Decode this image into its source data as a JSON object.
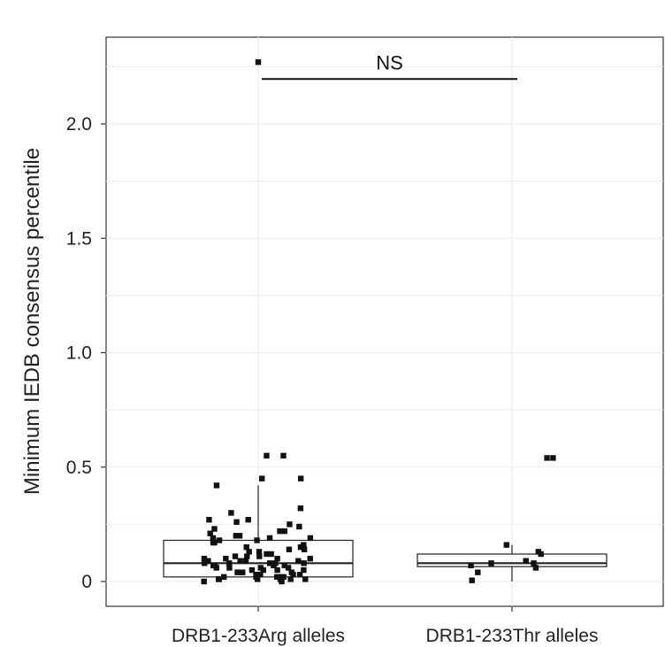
{
  "chart_data": {
    "type": "box",
    "title": "",
    "xlabel": "",
    "ylabel": "Minimum IEDB consensus percentile",
    "ylim": [
      -0.1,
      2.4
    ],
    "yticks": [
      0,
      0.5,
      1.0,
      1.5,
      2.0
    ],
    "ytick_labels": [
      "0",
      "0.5",
      "1.0",
      "1.5",
      "2.0"
    ],
    "grid": true,
    "categories": [
      "DRB1-233Arg alleles",
      "DRB1-233Thr alleles"
    ],
    "boxes": [
      {
        "category": "DRB1-233Arg alleles",
        "min": 0.0,
        "q1": 0.02,
        "median": 0.08,
        "q3": 0.18,
        "max": 0.42
      },
      {
        "category": "DRB1-233Thr alleles",
        "min": 0.0,
        "q1": 0.065,
        "median": 0.08,
        "q3": 0.12,
        "max": 0.16
      }
    ],
    "points": [
      {
        "category": "DRB1-233Arg alleles",
        "values": [
          2.27,
          0.55,
          0.55,
          0.45,
          0.45,
          0.42,
          0.32,
          0.3,
          0.27,
          0.27,
          0.26,
          0.25,
          0.24,
          0.23,
          0.22,
          0.22,
          0.21,
          0.2,
          0.2,
          0.19,
          0.19,
          0.19,
          0.18,
          0.18,
          0.18,
          0.17,
          0.17,
          0.16,
          0.15,
          0.15,
          0.14,
          0.14,
          0.13,
          0.13,
          0.12,
          0.12,
          0.11,
          0.11,
          0.11,
          0.1,
          0.1,
          0.1,
          0.1,
          0.09,
          0.09,
          0.09,
          0.09,
          0.08,
          0.08,
          0.08,
          0.08,
          0.08,
          0.07,
          0.07,
          0.07,
          0.07,
          0.06,
          0.06,
          0.06,
          0.06,
          0.05,
          0.05,
          0.05,
          0.05,
          0.04,
          0.04,
          0.04,
          0.04,
          0.03,
          0.03,
          0.03,
          0.03,
          0.02,
          0.02,
          0.02,
          0.02,
          0.02,
          0.01,
          0.01,
          0.01,
          0.01,
          0.01,
          0.01,
          0.0,
          0.0
        ]
      },
      {
        "category": "DRB1-233Thr alleles",
        "values": [
          0.54,
          0.54,
          0.16,
          0.13,
          0.12,
          0.09,
          0.08,
          0.08,
          0.07,
          0.06,
          0.04,
          0.005
        ]
      }
    ],
    "annotations": [
      {
        "text": "NS",
        "type": "significance-bar",
        "from": "DRB1-233Arg alleles",
        "to": "DRB1-233Thr alleles",
        "y": 2.2
      }
    ],
    "colors": {
      "points": "#111111",
      "box_stroke": "#222222",
      "grid": "#ebebeb",
      "panel_border": "#333333"
    }
  }
}
